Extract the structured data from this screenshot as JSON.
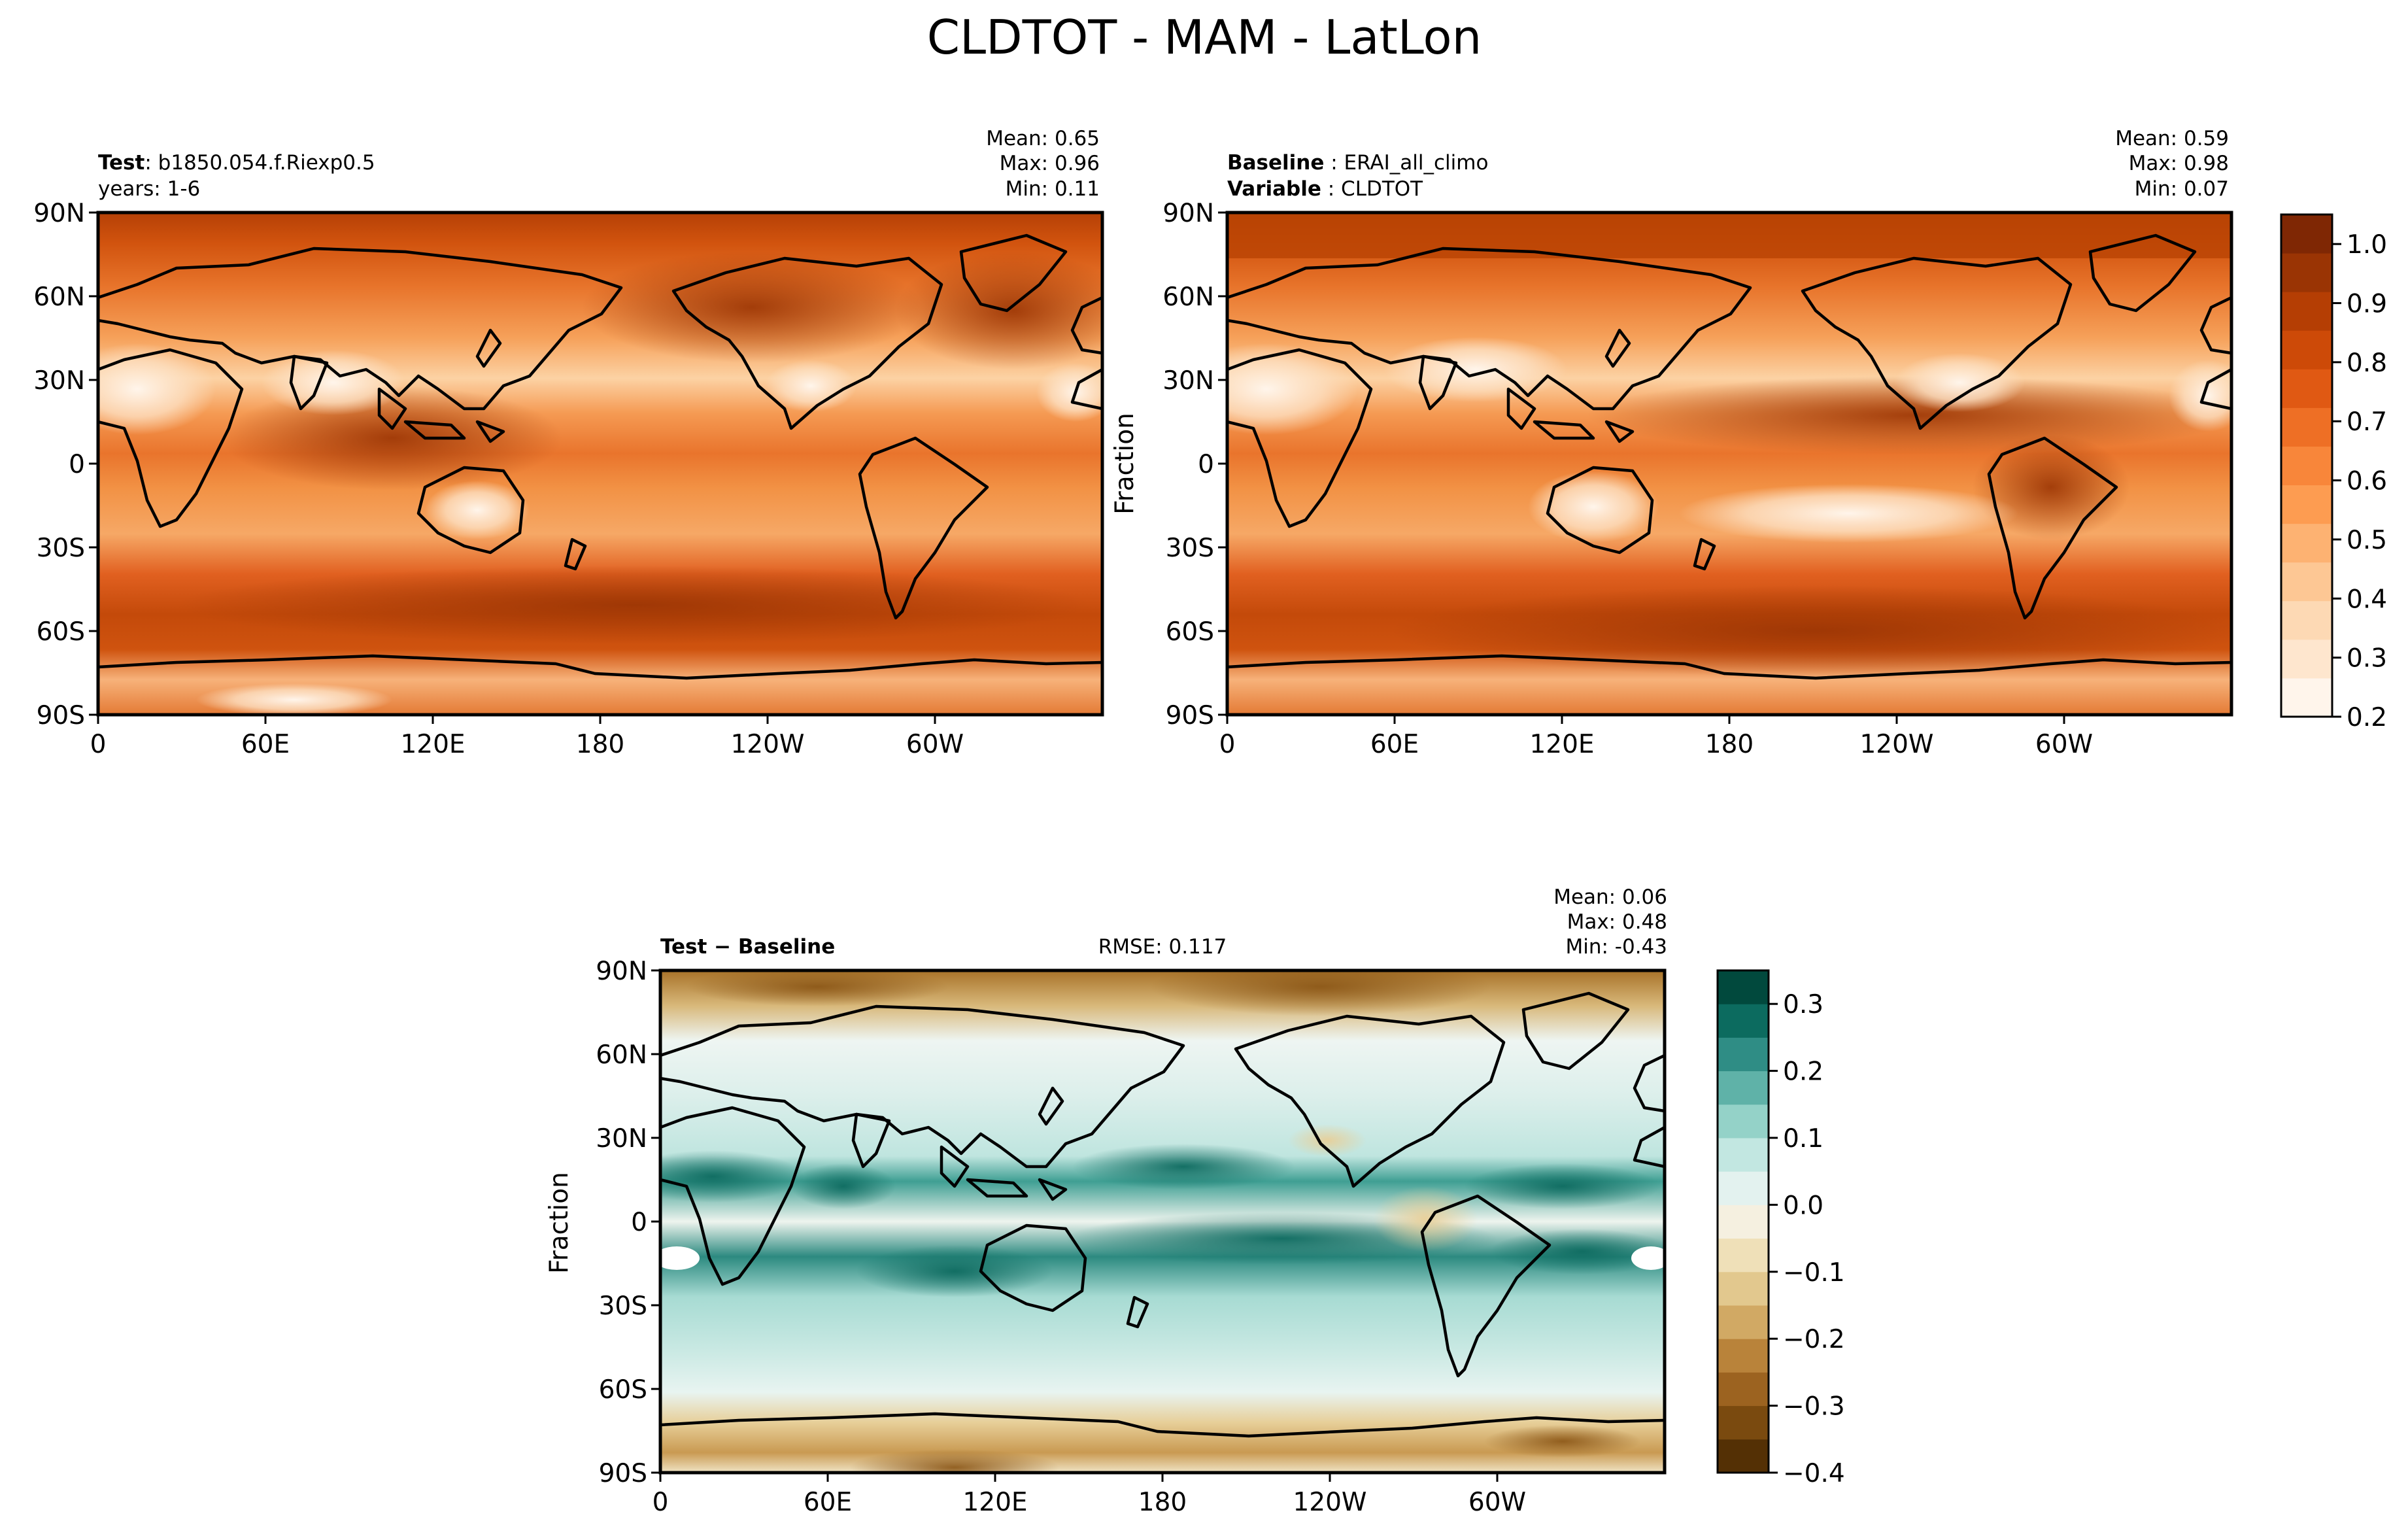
{
  "figure": {
    "title": "CLDTOT - MAM - LatLon"
  },
  "panels": [
    {
      "id": "test",
      "header_lines": [
        {
          "label": "Test",
          "sep": ": ",
          "value": "b1850.054.f.Riexp0.5"
        },
        {
          "label": "",
          "sep": "",
          "value": "years: 1-6"
        }
      ],
      "stats": {
        "mean": "Mean:  0.65",
        "max": "Max:  0.96",
        "min": "Min:  0.11"
      },
      "ylabel": "",
      "palette": "orange"
    },
    {
      "id": "baseline",
      "header_lines": [
        {
          "label": "Baseline",
          "sep": " : ",
          "value": "ERAI_all_climo"
        },
        {
          "label": "Variable",
          "sep": " : ",
          "value": "CLDTOT"
        }
      ],
      "stats": {
        "mean": "Mean:  0.59",
        "max": "Max:  0.98",
        "min": "Min:  0.07"
      },
      "ylabel": "Fraction",
      "palette": "orange"
    },
    {
      "id": "diff",
      "header_lines": [
        {
          "label": "Test − Baseline",
          "sep": "",
          "value": ""
        }
      ],
      "rmse": "RMSE: 0.117",
      "stats": {
        "mean": "Mean:  0.06",
        "max": "Max:  0.48",
        "min": "Min: -0.43"
      },
      "ylabel": "Fraction",
      "palette": "diverging"
    }
  ],
  "axes": {
    "x_ticks": [
      "0",
      "60E",
      "120E",
      "180",
      "120W",
      "60W"
    ],
    "y_ticks": [
      "90N",
      "60N",
      "30N",
      "0",
      "30S",
      "60S",
      "90S"
    ]
  },
  "colorbars": {
    "main": {
      "range": [
        0.2,
        1.05
      ],
      "ticks": [
        "1.0",
        "0.9",
        "0.8",
        "0.7",
        "0.6",
        "0.5",
        "0.4",
        "0.3",
        "0.2"
      ],
      "colors": [
        "#fff5eb",
        "#fee6ce",
        "#fdd9b4",
        "#fdc794",
        "#fdb272",
        "#fd9c51",
        "#f8863a",
        "#ee6f25",
        "#e05913",
        "#cd4a08",
        "#b53e04",
        "#9a3404",
        "#7f2704"
      ]
    },
    "diff": {
      "range": [
        -0.4,
        0.35
      ],
      "ticks": [
        "0.3",
        "0.2",
        "0.1",
        "0.0",
        "−0.1",
        "−0.2",
        "−0.3",
        "−0.4"
      ],
      "colors": [
        "#543005",
        "#7a4a0f",
        "#9c6320",
        "#b9833a",
        "#d1a964",
        "#e2c88e",
        "#efe0b8",
        "#f5f0e0",
        "#e3f2ef",
        "#c2e7e1",
        "#94d2c8",
        "#5fb2a8",
        "#2f8d85",
        "#0c6b5f",
        "#01493d"
      ]
    }
  },
  "colors": {
    "frame": "#000000",
    "coastline": "#000000",
    "background": "#ffffff"
  }
}
